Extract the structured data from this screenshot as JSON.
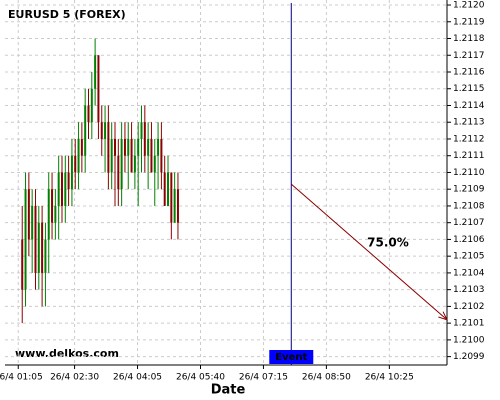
{
  "chart_data": {
    "type": "candlestick",
    "title": "EURUSD 5 (FOREX)",
    "xlabel": "Date",
    "watermark": "www.delkos.com",
    "x": [
      71,
      76,
      81,
      86,
      91,
      96,
      101,
      106,
      111,
      116,
      121,
      126,
      131,
      136,
      141,
      146,
      151,
      156,
      161,
      166,
      171,
      176,
      181,
      186,
      191,
      196,
      201,
      206,
      211,
      216,
      221,
      226,
      231,
      236,
      241,
      246,
      251,
      256,
      261,
      266,
      271,
      276,
      281,
      286,
      291,
      296,
      301,
      306
    ],
    "open": [
      1.2106,
      1.2103,
      1.2109,
      1.2106,
      1.2108,
      1.2104,
      1.2107,
      1.2104,
      1.2106,
      1.2109,
      1.2107,
      1.2108,
      1.211,
      1.2108,
      1.211,
      1.2109,
      1.2111,
      1.211,
      1.2112,
      1.2111,
      1.2114,
      1.2113,
      1.2115,
      1.2117,
      1.2113,
      1.2112,
      1.2113,
      1.211,
      1.2112,
      1.2111,
      1.2109,
      1.2112,
      1.2111,
      1.2112,
      1.211,
      1.2111,
      1.2112,
      1.2113,
      1.2111,
      1.2112,
      1.211,
      1.2111,
      1.2112,
      1.211,
      1.2108,
      1.211,
      1.2107,
      1.2109
    ],
    "high": [
      1.2108,
      1.211,
      1.211,
      1.2109,
      1.2109,
      1.2108,
      1.2108,
      1.2107,
      1.211,
      1.211,
      1.2109,
      1.2111,
      1.2111,
      1.2111,
      1.2111,
      1.2112,
      1.2112,
      1.2113,
      1.2113,
      1.2115,
      1.2115,
      1.2116,
      1.2118,
      1.2117,
      1.2114,
      1.2114,
      1.2114,
      1.2113,
      1.2113,
      1.2112,
      1.2113,
      1.2113,
      1.2113,
      1.2113,
      1.2112,
      1.2113,
      1.2114,
      1.2114,
      1.2113,
      1.2113,
      1.2112,
      1.2113,
      1.2113,
      1.2111,
      1.2111,
      1.211,
      1.211,
      1.211
    ],
    "low": [
      1.2101,
      1.2102,
      1.2105,
      1.2104,
      1.2103,
      1.2103,
      1.2102,
      1.2102,
      1.2104,
      1.2106,
      1.2106,
      1.2106,
      1.2107,
      1.2107,
      1.2108,
      1.2108,
      1.2109,
      1.2109,
      1.211,
      1.211,
      1.2112,
      1.2112,
      1.2114,
      1.2112,
      1.2111,
      1.211,
      1.2109,
      1.2109,
      1.2108,
      1.2108,
      1.2108,
      1.211,
      1.2109,
      1.211,
      1.2109,
      1.2108,
      1.211,
      1.211,
      1.2109,
      1.211,
      1.2108,
      1.2109,
      1.2109,
      1.2108,
      1.2108,
      1.2106,
      1.2107,
      1.2106
    ],
    "close": [
      1.2103,
      1.2109,
      1.2106,
      1.2108,
      1.2104,
      1.2107,
      1.2104,
      1.2106,
      1.2109,
      1.2107,
      1.2108,
      1.211,
      1.2108,
      1.211,
      1.2109,
      1.2111,
      1.211,
      1.2112,
      1.2111,
      1.2114,
      1.2113,
      1.2115,
      1.2117,
      1.2113,
      1.2112,
      1.2113,
      1.211,
      1.2112,
      1.2111,
      1.2109,
      1.2112,
      1.2111,
      1.2112,
      1.211,
      1.2111,
      1.2112,
      1.2113,
      1.2111,
      1.2112,
      1.211,
      1.2111,
      1.2112,
      1.211,
      1.2108,
      1.211,
      1.2107,
      1.2109,
      1.2107
    ],
    "up_color": "#008000",
    "down_color": "#8b0000",
    "grid": true,
    "xlim": [
      45,
      712
    ],
    "xticks": [
      {
        "value": 65,
        "label": "26/4 01:05"
      },
      {
        "value": 150,
        "label": "26/4 02:30"
      },
      {
        "value": 245,
        "label": "26/4 04:05"
      },
      {
        "value": 340,
        "label": "26/4 05:40"
      },
      {
        "value": 435,
        "label": "26/4 07:15"
      },
      {
        "value": 530,
        "label": "26/4 08:50"
      },
      {
        "value": 625,
        "label": "26/4 10:25"
      }
    ],
    "ylim": [
      1.20985,
      1.21203
    ],
    "yticks": [
      1.2099,
      {
        "value": 1.21,
        "label": "1.2100"
      },
      1.2101,
      1.2102,
      1.2103,
      1.2104,
      1.2105,
      1.2106,
      1.2107,
      1.2108,
      1.2109,
      {
        "value": 1.211,
        "label": "1.2110"
      },
      1.2111,
      1.2112,
      1.2113,
      1.2114,
      1.2115,
      1.2116,
      1.2117,
      1.2118,
      1.2119,
      {
        "value": 1.212,
        "label": "1.2120"
      }
    ],
    "event": {
      "x": 477,
      "label": "Event",
      "color": "#000080"
    },
    "forecast": {
      "x0": 477,
      "y0": 1.21093,
      "x1": 712,
      "y1": 1.21012,
      "label": "75.0%",
      "color": "#8b0000"
    }
  }
}
